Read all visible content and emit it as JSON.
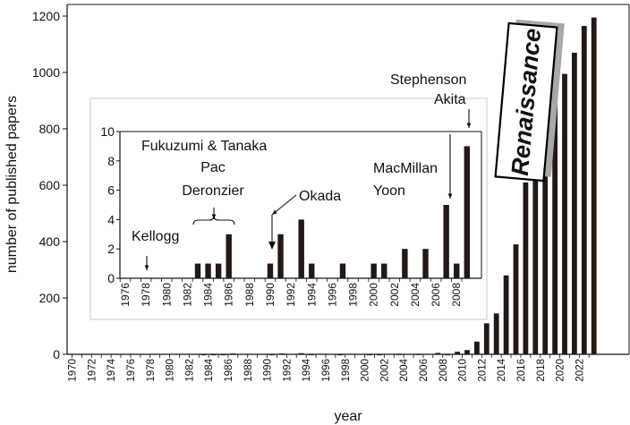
{
  "chart_data": [
    {
      "type": "bar",
      "xlabel": "year",
      "ylabel": "number of published papers",
      "ylim": [
        0,
        1200
      ],
      "yticks": [
        0,
        200,
        400,
        600,
        800,
        1000,
        1200
      ],
      "x_tick_labels": [
        "1970",
        "1972",
        "1974",
        "1976",
        "1978",
        "1980",
        "1982",
        "1984",
        "1986",
        "1988",
        "1990",
        "1992",
        "1994",
        "1996",
        "1998",
        "2000",
        "2002",
        "2004",
        "2006",
        "2008",
        "2010",
        "2012",
        "2014",
        "2016",
        "2018",
        "2020",
        "2022"
      ],
      "categories": [
        1970,
        1971,
        1972,
        1973,
        1974,
        1975,
        1976,
        1977,
        1978,
        1979,
        1980,
        1981,
        1982,
        1983,
        1984,
        1985,
        1986,
        1987,
        1988,
        1989,
        1990,
        1991,
        1992,
        1993,
        1994,
        1995,
        1996,
        1997,
        1998,
        1999,
        2000,
        2001,
        2002,
        2003,
        2004,
        2005,
        2006,
        2007,
        2008,
        2009,
        2010,
        2011,
        2012,
        2013,
        2014,
        2015,
        2016,
        2017,
        2018,
        2019,
        2020,
        2021,
        2022,
        2023
      ],
      "values": [
        0,
        0,
        0,
        0,
        0,
        0,
        0,
        0,
        0,
        0,
        0,
        0,
        0,
        1,
        1,
        1,
        3,
        0,
        0,
        0,
        1,
        3,
        0,
        4,
        1,
        0,
        0,
        1,
        0,
        0,
        1,
        1,
        0,
        2,
        0,
        2,
        0,
        5,
        1,
        9,
        15,
        45,
        110,
        145,
        280,
        390,
        610,
        810,
        1005,
        970,
        995,
        1070,
        1165,
        1195
      ],
      "annotation": "Renaissance"
    },
    {
      "type": "bar",
      "ylim": [
        0,
        10
      ],
      "yticks": [
        0,
        2,
        4,
        6,
        8,
        10
      ],
      "x_tick_labels": [
        "1976",
        "1978",
        "1980",
        "1982",
        "1984",
        "1986",
        "1988",
        "1990",
        "1992",
        "1994",
        "1996",
        "1998",
        "2000",
        "2002",
        "2004",
        "2006",
        "2008"
      ],
      "categories": [
        1976,
        1977,
        1978,
        1979,
        1980,
        1981,
        1982,
        1983,
        1984,
        1985,
        1986,
        1987,
        1988,
        1989,
        1990,
        1991,
        1992,
        1993,
        1994,
        1995,
        1996,
        1997,
        1998,
        1999,
        2000,
        2001,
        2002,
        2003,
        2004,
        2005,
        2006,
        2007,
        2008,
        2009
      ],
      "values": [
        0,
        0,
        0,
        0,
        0,
        0,
        0,
        1,
        1,
        1,
        3,
        0,
        0,
        0,
        1,
        3,
        0,
        4,
        1,
        0,
        0,
        1,
        0,
        0,
        1,
        1,
        0,
        2,
        0,
        2,
        0,
        5,
        1,
        9
      ],
      "annotations": [
        {
          "text": "Kellogg",
          "year": 1978
        },
        {
          "text": "Fukuzumi & Tanaka",
          "year": 1983
        },
        {
          "text": "Pac",
          "year": 1984
        },
        {
          "text": "Deronzier",
          "year": 1986
        },
        {
          "text": "Okada",
          "year": 1990
        },
        {
          "text": "MacMillan",
          "year": 2008
        },
        {
          "text": "Yoon",
          "year": 2008
        },
        {
          "text": "Stephenson",
          "year": 2009
        },
        {
          "text": "Akita",
          "year": 2009
        }
      ]
    }
  ],
  "colors": {
    "bar": "#231815",
    "axis": "#111111",
    "inset_border": "#c8c8c8",
    "shadow": "#a8a8a8"
  }
}
